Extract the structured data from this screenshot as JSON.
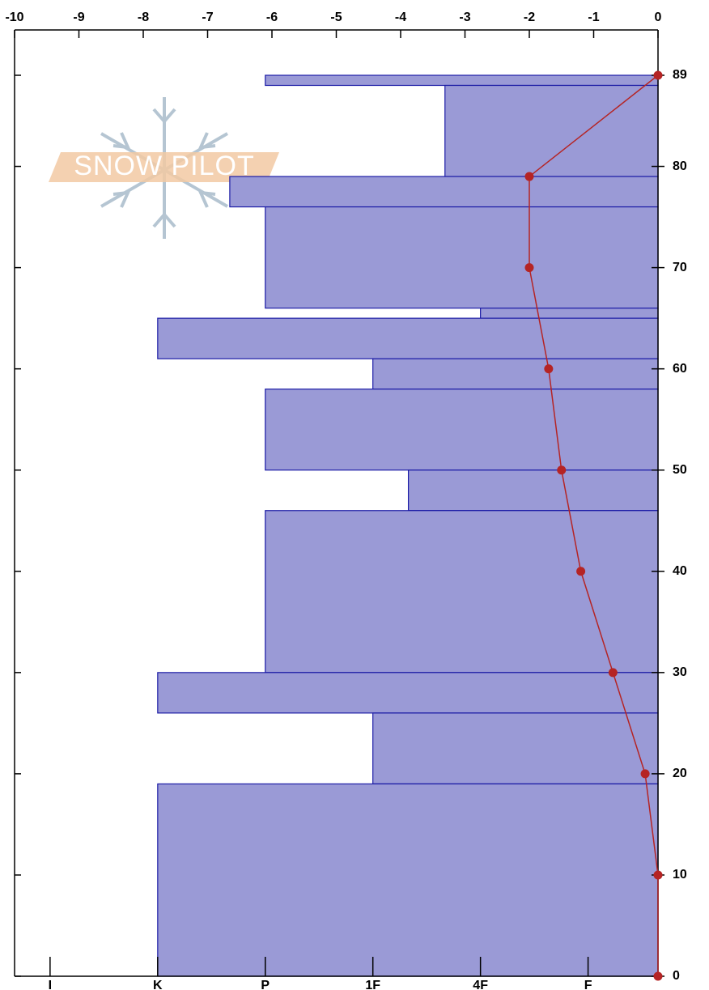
{
  "chart_data": {
    "type": "snow-profile",
    "watermark": "SNOW PILOT",
    "xlim": [
      -10,
      0
    ],
    "xticks": [
      -10,
      -9,
      -8,
      -7,
      -6,
      -5,
      -4,
      -3,
      -2,
      -1,
      0
    ],
    "ylim": [
      0,
      89
    ],
    "yticks": [
      0,
      10,
      20,
      30,
      40,
      50,
      60,
      70,
      80,
      89
    ],
    "hardness_lim": [
      6.33,
      0.35
    ],
    "hardness_ticks": [
      {
        "value": 6,
        "label": "I"
      },
      {
        "value": 5,
        "label": "K"
      },
      {
        "value": 4,
        "label": "P"
      },
      {
        "value": 3,
        "label": "1F"
      },
      {
        "value": 2,
        "label": "4F"
      },
      {
        "value": 1,
        "label": "F"
      }
    ],
    "layer_tops": [
      89,
      88,
      79,
      76,
      66,
      65,
      61,
      58,
      50,
      46,
      30,
      26,
      19
    ],
    "layer_bottoms": [
      88,
      79,
      76,
      66,
      65,
      61,
      58,
      50,
      46,
      30,
      26,
      19,
      0
    ],
    "hardness": [
      4,
      2.33,
      4.33,
      4,
      2,
      5,
      3,
      4,
      2.67,
      4,
      5,
      3,
      5
    ],
    "layer_color": "#9a9ad6",
    "layer_edge": "#1c1ca6",
    "temp_heights": [
      89,
      79,
      70,
      60,
      50,
      40,
      30,
      20,
      10,
      0
    ],
    "temps": [
      0,
      -2,
      -2,
      -1.7,
      -1.5,
      -1.2,
      -0.7,
      -0.2,
      0,
      0
    ],
    "temp_color": "#b52424"
  }
}
